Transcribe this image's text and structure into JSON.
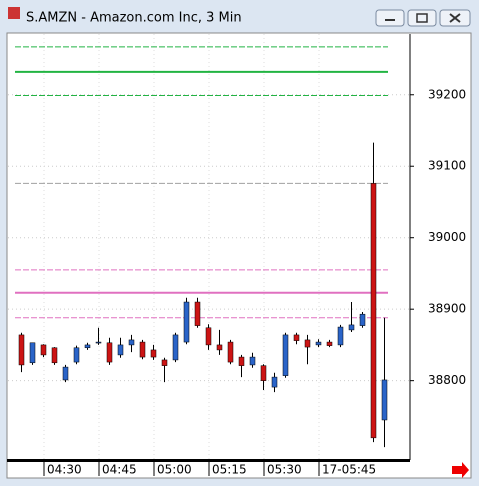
{
  "window_title": "S.AMZN - Amazon.com Inc, 3 Min",
  "chart_data": {
    "type": "candlestick",
    "categories": [
      null,
      null,
      "04:30",
      null,
      null,
      null,
      null,
      "04:45",
      null,
      null,
      null,
      null,
      "05:00",
      null,
      null,
      null,
      null,
      "05:15",
      null,
      null,
      null,
      null,
      "05:30",
      null,
      null,
      null,
      null,
      "17-05:45",
      null,
      null,
      null,
      null,
      null,
      null
    ],
    "open": [
      38864,
      38825,
      38850,
      38846,
      38801,
      38826,
      38846,
      38853,
      38853,
      38836,
      38850,
      38854,
      38843,
      38829,
      38829,
      38854,
      38910,
      38874,
      38850,
      38854,
      38833,
      38822,
      38821,
      38791,
      38807,
      38864,
      38857,
      38850,
      38854,
      38850,
      38871,
      38877,
      39076,
      38745
    ],
    "high": [
      38867,
      38853,
      38851,
      38847,
      38822,
      38849,
      38853,
      38874,
      38860,
      38860,
      38864,
      38857,
      38850,
      38832,
      38867,
      38916,
      38916,
      38879,
      38871,
      38857,
      38836,
      38839,
      38823,
      38811,
      38867,
      38867,
      38864,
      38858,
      38857,
      38878,
      38910,
      38896,
      39133,
      38888
    ],
    "low": [
      38812,
      38822,
      38833,
      38822,
      38798,
      38823,
      38843,
      38850,
      38822,
      38832,
      38840,
      38830,
      38829,
      38798,
      38826,
      38851,
      38874,
      38843,
      38836,
      38823,
      38805,
      38818,
      38787,
      38784,
      38804,
      38851,
      38823,
      38847,
      38847,
      38847,
      38868,
      38874,
      38714,
      38707
    ],
    "close": [
      38822,
      38853,
      38836,
      38825,
      38819,
      38846,
      38850,
      38854,
      38826,
      38850,
      38857,
      38833,
      38833,
      38821,
      38864,
      38910,
      38877,
      38850,
      38843,
      38826,
      38821,
      38833,
      38800,
      38805,
      38864,
      38856,
      38847,
      38854,
      38849,
      38875,
      38878,
      38893,
      38720,
      38801
    ],
    "up_color": "#2a64c8",
    "down_color": "#cc1414",
    "ylim": [
      38689,
      39285
    ],
    "yticks": [
      38800,
      38900,
      39000,
      39100,
      39200
    ],
    "grid": true,
    "levels": [
      {
        "value": 39267,
        "color": "#22b443",
        "style": "dashed"
      },
      {
        "value": 39232,
        "color": "#22b443",
        "style": "solid"
      },
      {
        "value": 39199,
        "color": "#22b443",
        "style": "dashed"
      },
      {
        "value": 39076,
        "color": "#a0a0a0",
        "style": "dashed"
      },
      {
        "value": 38955,
        "color": "#e070c0",
        "style": "dashed"
      },
      {
        "value": 38923,
        "color": "#e070c0",
        "style": "solid"
      },
      {
        "value": 38888,
        "color": "#e070c0",
        "style": "dashed"
      }
    ]
  }
}
